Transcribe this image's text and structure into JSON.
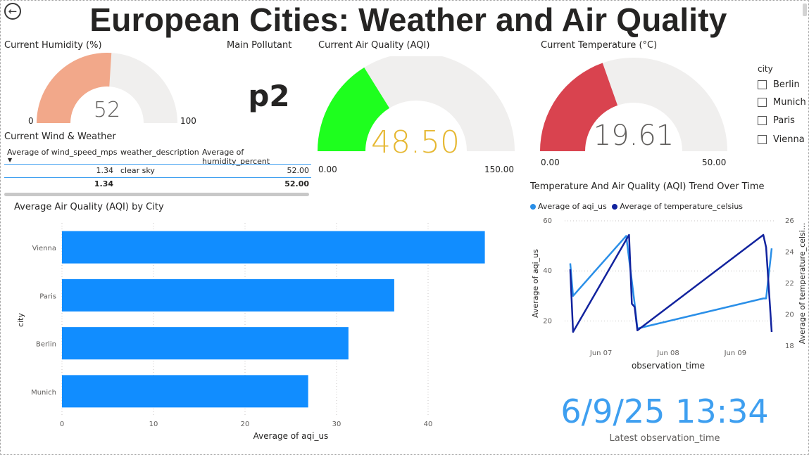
{
  "header": {
    "title": "European Cities: Weather and Air Quality",
    "back_icon": "arrow-left-circle-icon"
  },
  "humidity_gauge": {
    "title": "Current Humidity (%)",
    "value": 52,
    "value_label": "52",
    "min_label": "0",
    "max_label": "100",
    "min": 0,
    "max": 100,
    "fill_color": "#f2a88a"
  },
  "pollutant_card": {
    "title": "Main Pollutant",
    "value": "p2"
  },
  "aqi_gauge": {
    "title": "Current Air Quality (AQI)",
    "value": 48.5,
    "value_label": "48.50",
    "min_label": "0.00",
    "max_label": "150.00",
    "min": 0,
    "max": 150,
    "fill_color": "#1eff1e",
    "value_color": "#e6b832"
  },
  "temp_gauge": {
    "title": "Current Temperature (°C)",
    "value": 19.61,
    "value_label": "19.61",
    "min_label": "0.00",
    "max_label": "50.00",
    "min": 0,
    "max": 50,
    "fill_color": "#d9434f"
  },
  "city_slicer": {
    "title": "city",
    "items": [
      "Berlin",
      "Munich",
      "Paris",
      "Vienna"
    ]
  },
  "wind_table": {
    "title": "Current Wind & Weather",
    "columns": [
      "Average of wind_speed_mps",
      "weather_description",
      "Average of humidity_percent"
    ],
    "rows": [
      [
        "1.34",
        "clear sky",
        "52.00"
      ]
    ],
    "total": [
      "1.34",
      "",
      "52.00"
    ]
  },
  "latest_card": {
    "value": "6/9/25 13:34",
    "label": "Latest observation_time"
  },
  "chart_data": [
    {
      "type": "bar",
      "title": "Average Air Quality (AQI) by City",
      "categories": [
        "Vienna",
        "Paris",
        "Berlin",
        "Munich"
      ],
      "values": [
        46.2,
        36.3,
        31.3,
        26.9
      ],
      "xlabel": "Average of aqi_us",
      "ylabel": "city",
      "xlim": [
        0,
        50
      ],
      "xticks": [
        "0",
        "10",
        "20",
        "30",
        "40"
      ],
      "color": "#118dff",
      "grid": true
    },
    {
      "type": "line",
      "title": "Temperature And Air Quality (AQI) Trend Over Time",
      "xlabel": "observation_time",
      "xticks": [
        "Jun 07",
        "Jun 08",
        "Jun 09"
      ],
      "ylabel_left": "Average of aqi_us",
      "ylabel_right": "Average of temperature_celsi...",
      "ylim_left": [
        10,
        60
      ],
      "yticks_left": [
        "60",
        "40",
        "20"
      ],
      "ylim_right": [
        18,
        26
      ],
      "yticks_right": [
        "26",
        "24",
        "22",
        "20",
        "18"
      ],
      "legend_position": "top-left",
      "series": [
        {
          "name": "Average of aqi_us",
          "axis": "left",
          "color": "#2a8fe8",
          "x": [
            "Jun 06 13:00",
            "Jun 06 14:00",
            "Jun 07 09:00",
            "Jun 07 12:00",
            "Jun 07 13:00",
            "Jun 09 10:00",
            "Jun 09 11:00",
            "Jun 09 13:00"
          ],
          "y": [
            43,
            30,
            54,
            27,
            17,
            29,
            29,
            49
          ]
        },
        {
          "name": "Average of temperature_celsius",
          "axis": "right",
          "color": "#12239e",
          "x": [
            "Jun 06 13:00",
            "Jun 06 14:00",
            "Jun 07 10:00",
            "Jun 07 11:00",
            "Jun 07 12:00",
            "Jun 07 13:00",
            "Jun 09 10:00",
            "Jun 09 11:00",
            "Jun 09 13:00"
          ],
          "y": [
            22.9,
            18.9,
            25.1,
            20.7,
            20.5,
            19.0,
            25.1,
            24.3,
            18.9
          ]
        }
      ]
    }
  ]
}
